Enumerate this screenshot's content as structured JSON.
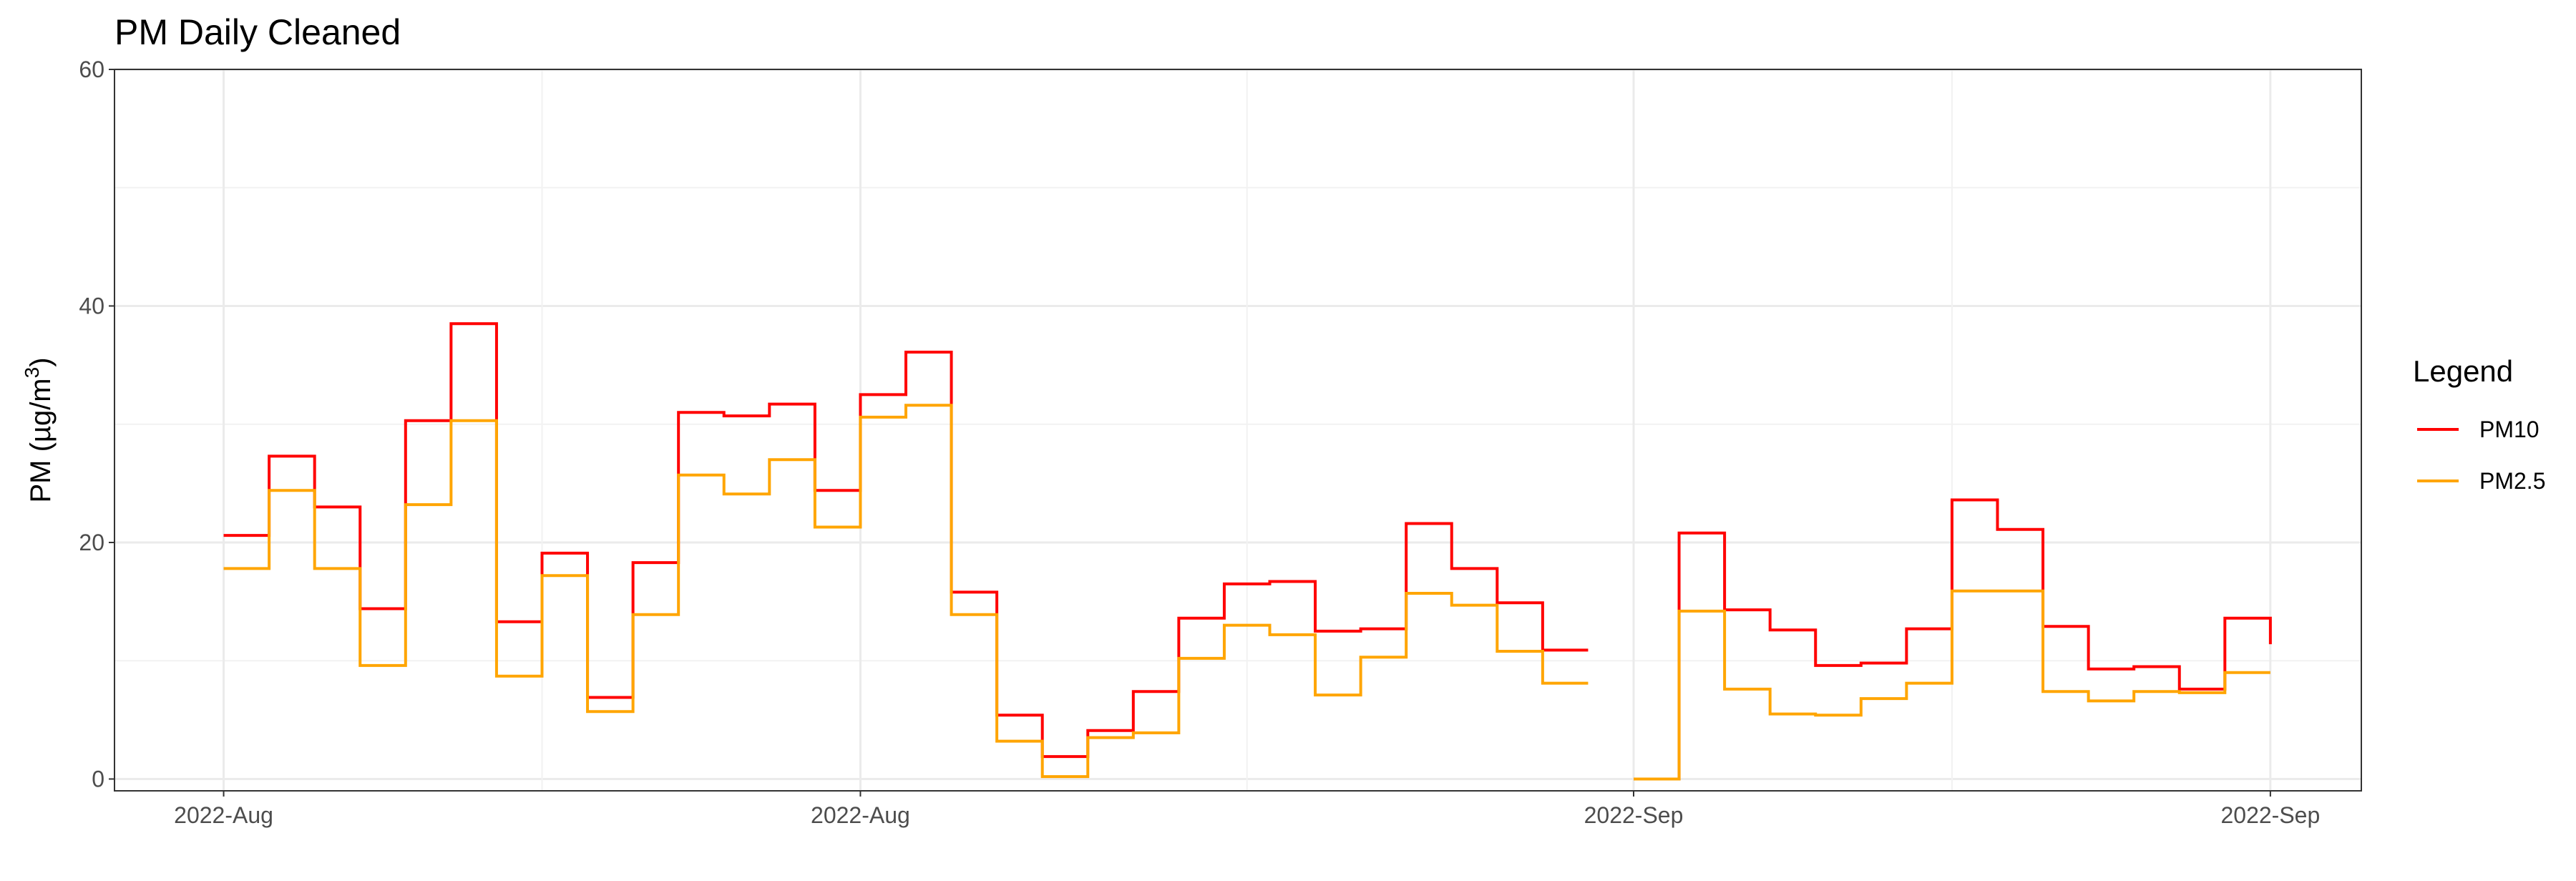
{
  "chart_data": {
    "type": "line",
    "step": true,
    "title": "PM Daily Cleaned",
    "ylabel": {
      "base": "PM (µg/m",
      "superscript": "3",
      "close": ")"
    },
    "xlabel": "",
    "ylim": [
      -1,
      60
    ],
    "y_ticks": [
      0,
      20,
      40,
      60
    ],
    "x_ticks": [
      {
        "label": "2022-Aug",
        "day": 1
      },
      {
        "label": "2022-Aug",
        "day": 15
      },
      {
        "label": "2022-Sep",
        "day": 32
      },
      {
        "label": "2022-Sep",
        "day": 46
      }
    ],
    "xlim": [
      -1.4,
      48
    ],
    "grid": true,
    "legend": {
      "title": "Legend",
      "position": "right"
    },
    "series": [
      {
        "name": "PM10",
        "color": "#FF0000",
        "segments": [
          {
            "x": [
              1,
              2,
              3,
              4,
              5,
              6,
              7,
              8,
              9,
              10,
              11,
              12,
              13,
              14,
              15,
              16,
              17,
              18,
              19,
              20,
              21,
              22,
              23,
              24,
              25,
              26,
              27,
              28,
              29,
              30,
              31
            ],
            "y": [
              20.6,
              27.3,
              23.0,
              14.4,
              30.3,
              38.5,
              13.3,
              19.1,
              6.9,
              18.3,
              31.0,
              30.7,
              31.7,
              24.4,
              32.5,
              36.1,
              15.8,
              5.4,
              1.9,
              4.1,
              7.4,
              13.6,
              16.5,
              16.7,
              12.5,
              12.7,
              21.6,
              17.8,
              14.9,
              10.9,
              10.9
            ]
          },
          {
            "x": [
              32,
              33,
              34,
              35,
              36,
              37,
              38,
              39,
              40,
              41,
              42,
              43,
              44,
              45,
              46
            ],
            "y": [
              0,
              20.8,
              14.3,
              12.6,
              9.6,
              9.8,
              12.7,
              23.6,
              21.1,
              12.9,
              9.3,
              9.5,
              7.6,
              13.6,
              11.4
            ]
          }
        ]
      },
      {
        "name": "PM2.5",
        "color": "#FFA500",
        "segments": [
          {
            "x": [
              1,
              2,
              3,
              4,
              5,
              6,
              7,
              8,
              9,
              10,
              11,
              12,
              13,
              14,
              15,
              16,
              17,
              18,
              19,
              20,
              21,
              22,
              23,
              24,
              25,
              26,
              27,
              28,
              29,
              30,
              31
            ],
            "y": [
              17.8,
              24.4,
              17.8,
              9.6,
              23.2,
              30.3,
              8.7,
              17.2,
              5.7,
              13.9,
              25.7,
              24.1,
              27.0,
              21.3,
              30.6,
              31.6,
              13.9,
              3.2,
              0.2,
              3.5,
              3.9,
              10.2,
              13.0,
              12.2,
              7.1,
              10.3,
              15.7,
              14.7,
              10.8,
              8.1,
              8.1
            ]
          },
          {
            "x": [
              32,
              33,
              34,
              35,
              36,
              37,
              38,
              39,
              40,
              41,
              42,
              43,
              44,
              45,
              46
            ],
            "y": [
              0,
              14.2,
              7.6,
              5.5,
              5.4,
              6.8,
              8.1,
              15.9,
              15.9,
              7.4,
              6.6,
              7.4,
              7.3,
              9.0,
              9.0
            ]
          }
        ]
      }
    ]
  }
}
